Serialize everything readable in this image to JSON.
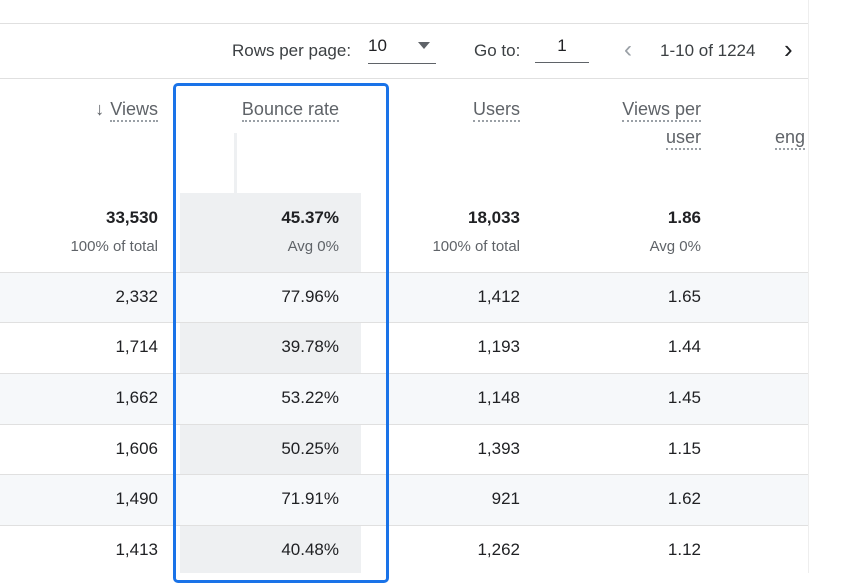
{
  "pagination": {
    "rows_per_page_label": "Rows per page:",
    "rows_per_page_value": "10",
    "goto_label": "Go to:",
    "goto_value": "1",
    "range": "1-10 of 1224"
  },
  "columns": [
    {
      "title": "Views",
      "sorted": "descending",
      "total": "33,530",
      "sub": "100% of total"
    },
    {
      "title": "Bounce rate",
      "total": "45.37%",
      "sub": "Avg 0%"
    },
    {
      "title": "Users",
      "total": "18,033",
      "sub": "100% of total"
    },
    {
      "title": "Views per",
      "title2": "user",
      "total": "1.86",
      "sub": "Avg 0%"
    },
    {
      "title": "eng"
    }
  ],
  "rows": [
    [
      "2,332",
      "77.96%",
      "1,412",
      "1.65"
    ],
    [
      "1,714",
      "39.78%",
      "1,193",
      "1.44"
    ],
    [
      "1,662",
      "53.22%",
      "1,148",
      "1.45"
    ],
    [
      "1,606",
      "50.25%",
      "1,393",
      "1.15"
    ],
    [
      "1,490",
      "71.91%",
      "921",
      "1.62"
    ],
    [
      "1,413",
      "40.48%",
      "1,262",
      "1.12"
    ]
  ],
  "colors": {
    "highlight": "#1a73e8",
    "row_shade": "#f6f8fa"
  }
}
